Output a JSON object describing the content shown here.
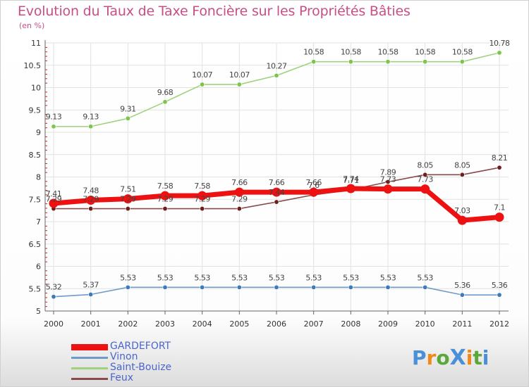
{
  "title": "Evolution du Taux de Taxe Foncière sur les Propriétés Bâties",
  "subtitle": "(en %)",
  "logo": {
    "text": "ProXiti",
    "letters": [
      "P",
      "r",
      "o",
      "X",
      "i",
      "t",
      "i"
    ],
    "colors": [
      "#4a90d9",
      "#ef8a1a",
      "#5aa83c",
      "#4a90d9",
      "#ef8a1a",
      "#5aa83c",
      "#4a90d9"
    ]
  },
  "chart_data": {
    "type": "line",
    "title": "Evolution du Taux de Taxe Foncière sur les Propriétés Bâties",
    "ylabel": "(en %)",
    "xlabel": "",
    "categories": [
      "2000",
      "2001",
      "2002",
      "2003",
      "2004",
      "2005",
      "2006",
      "2007",
      "2008",
      "2009",
      "2010",
      "2011",
      "2012"
    ],
    "ylim": [
      5,
      11
    ],
    "yticks": [
      "5",
      "5.5",
      "6",
      "6.5",
      "7",
      "7.5",
      "8",
      "8.5",
      "9",
      "9.5",
      "10",
      "10.5",
      "11"
    ],
    "grid": true,
    "legend_position": "bottom-left",
    "series": [
      {
        "name": "GARDEFORT",
        "color": "#ee1111",
        "marker": "#ee1111",
        "width": 7,
        "values": [
          7.41,
          7.48,
          7.51,
          7.58,
          7.58,
          7.66,
          7.66,
          7.66,
          7.74,
          7.73,
          7.73,
          7.03,
          7.1
        ],
        "labels": [
          "7.41",
          "7.48",
          "7.51",
          "7.58",
          "7.58",
          "7.66",
          "7.66",
          "7.66",
          "7.74",
          "7.73",
          "7.73",
          "7.03",
          "7.1"
        ]
      },
      {
        "name": "Vinon",
        "color": "#6f9bc8",
        "marker": "#3d7ab8",
        "width": 1.6,
        "values": [
          5.32,
          5.37,
          5.53,
          5.53,
          5.53,
          5.53,
          5.53,
          5.53,
          5.53,
          5.53,
          5.53,
          5.36,
          5.36
        ],
        "labels": [
          "5.32",
          "5.37",
          "5.53",
          "5.53",
          "5.53",
          "5.53",
          "5.53",
          "5.53",
          "5.53",
          "5.53",
          "5.53",
          "5.36",
          "5.36"
        ]
      },
      {
        "name": "Saint-Bouize",
        "color": "#9fd27c",
        "marker": "#7ec34e",
        "width": 1.6,
        "values": [
          9.13,
          9.13,
          9.31,
          9.68,
          10.07,
          10.07,
          10.27,
          10.58,
          10.58,
          10.58,
          10.58,
          10.58,
          10.78
        ],
        "labels": [
          "9.13",
          "9.13",
          "9.31",
          "9.68",
          "10.07",
          "10.07",
          "10.27",
          "10.58",
          "10.58",
          "10.58",
          "10.58",
          "10.58",
          "10.78"
        ]
      },
      {
        "name": "Feux",
        "color": "#8a4a4a",
        "marker": "#6e1e1e",
        "width": 1.6,
        "values": [
          7.29,
          7.29,
          7.29,
          7.29,
          7.29,
          7.29,
          7.44,
          7.6,
          7.71,
          7.89,
          8.05,
          8.05,
          8.21
        ],
        "labels": [
          "7.29",
          "7.29",
          "7.29",
          "7.29",
          "7.29",
          "7.29",
          "7.44",
          "7.6",
          "7.71",
          "7.89",
          "8.05",
          "8.05",
          "8.21"
        ]
      }
    ]
  }
}
